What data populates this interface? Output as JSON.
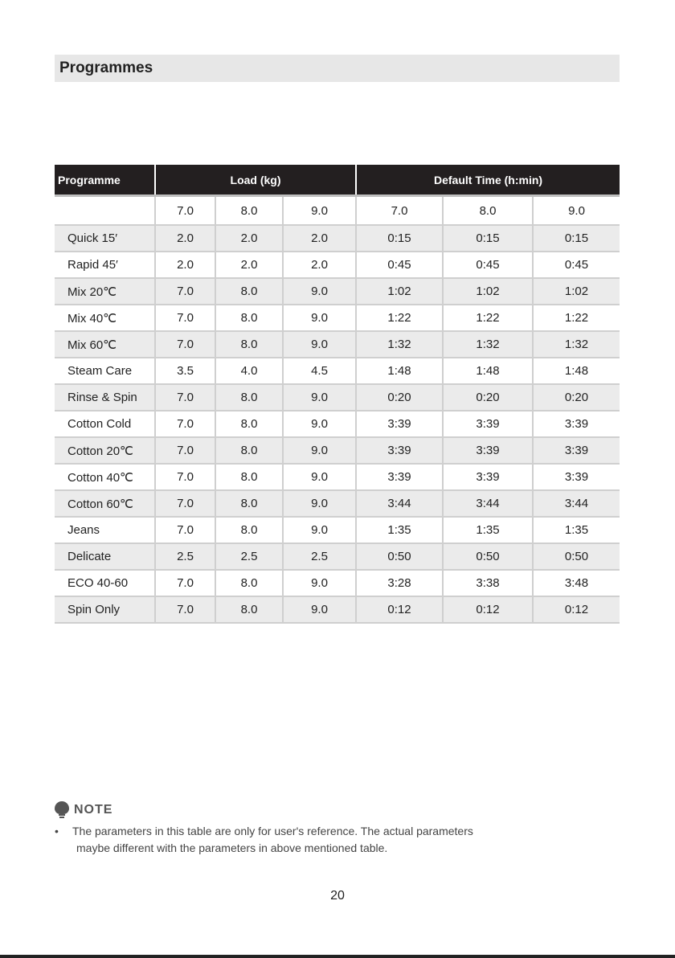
{
  "section_title": "Programmes",
  "table": {
    "headers": {
      "programme": "Programme",
      "load": "Load (kg)",
      "time": "Default Time (h:min)"
    },
    "sub_headers": [
      "7.0",
      "8.0",
      "9.0",
      "7.0",
      "8.0",
      "9.0"
    ],
    "rows": [
      {
        "name": "Quick 15′",
        "values": [
          "2.0",
          "2.0",
          "2.0",
          "0:15",
          "0:15",
          "0:15"
        ]
      },
      {
        "name": "Rapid 45′",
        "values": [
          "2.0",
          "2.0",
          "2.0",
          "0:45",
          "0:45",
          "0:45"
        ]
      },
      {
        "name": "Mix 20℃",
        "values": [
          "7.0",
          "8.0",
          "9.0",
          "1:02",
          "1:02",
          "1:02"
        ]
      },
      {
        "name": "Mix 40℃",
        "values": [
          "7.0",
          "8.0",
          "9.0",
          "1:22",
          "1:22",
          "1:22"
        ]
      },
      {
        "name": "Mix 60℃",
        "values": [
          "7.0",
          "8.0",
          "9.0",
          "1:32",
          "1:32",
          "1:32"
        ]
      },
      {
        "name": "Steam Care",
        "values": [
          "3.5",
          "4.0",
          "4.5",
          "1:48",
          "1:48",
          "1:48"
        ]
      },
      {
        "name": "Rinse & Spin",
        "values": [
          "7.0",
          "8.0",
          "9.0",
          "0:20",
          "0:20",
          "0:20"
        ]
      },
      {
        "name": "Cotton Cold",
        "values": [
          "7.0",
          "8.0",
          "9.0",
          "3:39",
          "3:39",
          "3:39"
        ]
      },
      {
        "name": "Cotton 20℃",
        "values": [
          "7.0",
          "8.0",
          "9.0",
          "3:39",
          "3:39",
          "3:39"
        ]
      },
      {
        "name": "Cotton 40℃",
        "values": [
          "7.0",
          "8.0",
          "9.0",
          "3:39",
          "3:39",
          "3:39"
        ]
      },
      {
        "name": "Cotton 60℃",
        "values": [
          "7.0",
          "8.0",
          "9.0",
          "3:44",
          "3:44",
          "3:44"
        ]
      },
      {
        "name": "Jeans",
        "values": [
          "7.0",
          "8.0",
          "9.0",
          "1:35",
          "1:35",
          "1:35"
        ]
      },
      {
        "name": "Delicate",
        "values": [
          "2.5",
          "2.5",
          "2.5",
          "0:50",
          "0:50",
          "0:50"
        ]
      },
      {
        "name": "ECO 40-60",
        "values": [
          "7.0",
          "8.0",
          "9.0",
          "3:28",
          "3:38",
          "3:48"
        ]
      },
      {
        "name": "Spin Only",
        "values": [
          "7.0",
          "8.0",
          "9.0",
          "0:12",
          "0:12",
          "0:12"
        ]
      }
    ]
  },
  "note": {
    "icon": "lightbulb-icon",
    "title": "NOTE",
    "bullet": "•",
    "line1": "The parameters in this table are only for user's reference. The actual parameters",
    "line2": "maybe different  with the parameters in above mentioned table."
  },
  "page_number": "20",
  "colors": {
    "header_bg": "#231f20",
    "section_bar_bg": "#e7e7e7",
    "alt_row_bg": "#ebebeb"
  }
}
